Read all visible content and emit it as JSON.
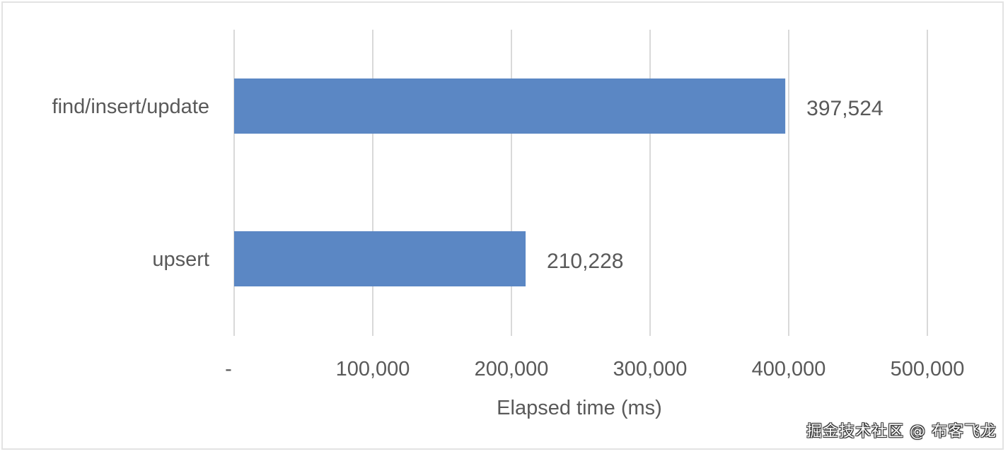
{
  "chart_data": {
    "type": "bar",
    "orientation": "horizontal",
    "categories": [
      "find/insert/update",
      "upsert"
    ],
    "values": [
      397524,
      210228
    ],
    "value_labels": [
      "397,524",
      "210,228"
    ],
    "xlabel": "Elapsed time (ms)",
    "ylabel": "",
    "title": "",
    "xlim": [
      0,
      500000
    ],
    "x_ticks": [
      0,
      100000,
      200000,
      300000,
      400000,
      500000
    ],
    "x_tick_labels": [
      "-",
      "100,000",
      "200,000",
      "300,000",
      "400,000",
      "500,000"
    ],
    "grid": "vertical",
    "legend": "none",
    "bar_color": "#5b87c4"
  },
  "watermark": "掘金技术社区 @ 布客飞龙"
}
